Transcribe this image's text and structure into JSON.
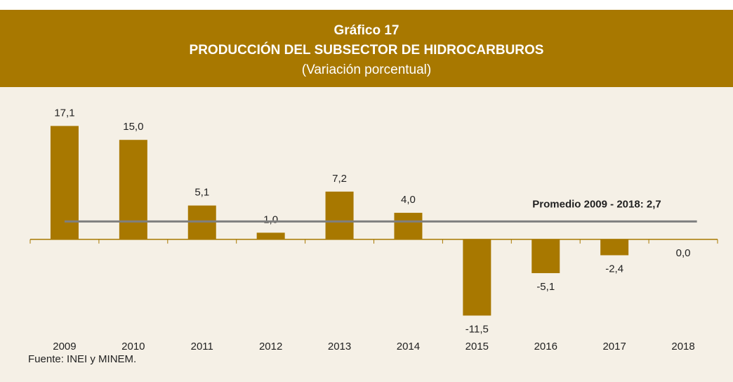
{
  "chart_data": {
    "type": "bar",
    "header": "Gráfico 17",
    "title": "PRODUCCIÓN DEL SUBSECTOR DE HIDROCARBUROS",
    "subtitle": "(Variación porcentual)",
    "categories": [
      "2009",
      "2010",
      "2011",
      "2012",
      "2013",
      "2014",
      "2015",
      "2016",
      "2017",
      "2018"
    ],
    "values": [
      17.1,
      15.0,
      5.1,
      1.0,
      7.2,
      4.0,
      -11.5,
      -5.1,
      -2.4,
      0.0
    ],
    "value_labels": [
      "17,1",
      "15,0",
      "5,1",
      "1,0",
      "7,2",
      "4,0",
      "-11,5",
      "-5,1",
      "-2,4",
      "0,0"
    ],
    "color": "#a87800",
    "ylim": [
      -14,
      20
    ],
    "reference_line": {
      "value": 2.7,
      "label": "Promedio 2009 - 2018: 2,7",
      "color": "#7f7f7f"
    },
    "source": "Fuente: INEI y MINEM."
  }
}
